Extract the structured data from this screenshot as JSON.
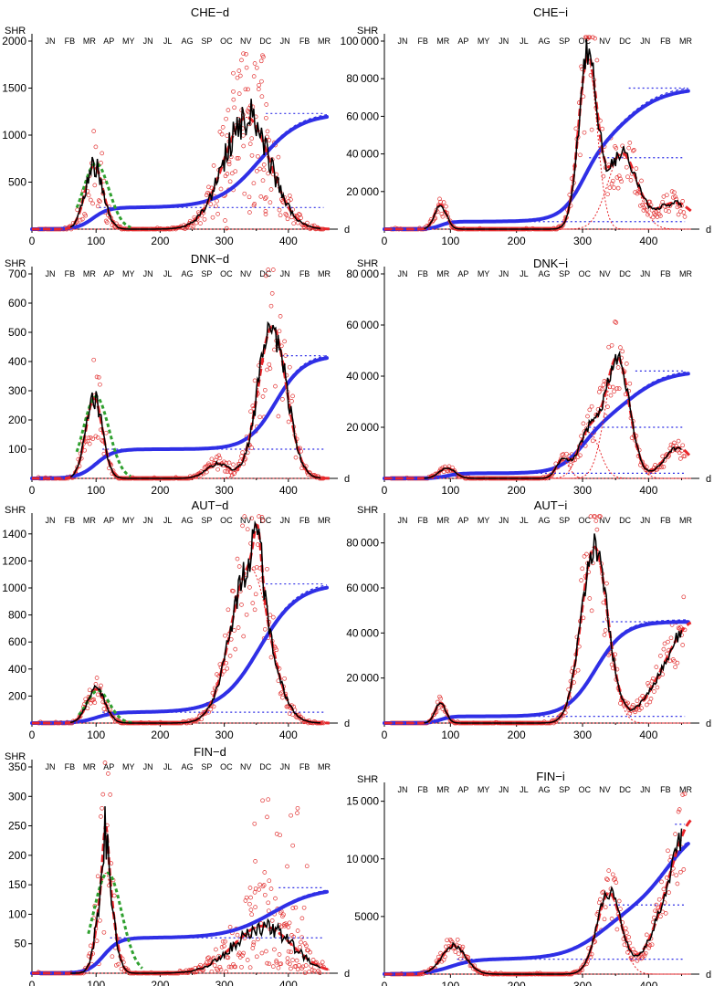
{
  "figure": {
    "months": [
      "JN",
      "FB",
      "MR",
      "AP",
      "MY",
      "JN",
      "JL",
      "AG",
      "SP",
      "OC",
      "NV",
      "DC",
      "JN",
      "FB",
      "MR"
    ],
    "ylabel": "SHR",
    "xlabel": "d",
    "colors": {
      "data": "#e23232",
      "avg": "#000000",
      "fitA": "#e8262b",
      "fitB": "#2f2fe6",
      "green": "#2fa02f"
    }
  },
  "chart_data": [
    {
      "id": "che_d",
      "type": "scatter",
      "title": "CHE−d",
      "xlim": [
        0,
        470
      ],
      "ylim": [
        0,
        2000
      ],
      "xticks": [
        0,
        100,
        200,
        300,
        400
      ],
      "yticks": [
        500,
        1000,
        1500,
        2000
      ],
      "ytick_labels": [
        "500",
        "1000",
        "1500",
        "2000"
      ],
      "waves": [
        {
          "c": 97,
          "w": 14,
          "h": 680
        },
        {
          "c": 335,
          "w": 36,
          "h": 1190
        }
      ],
      "blue_plateaus": [
        230,
        1230
      ],
      "blue_centers": [
        95,
        355
      ],
      "blue_widths": [
        12,
        32
      ],
      "green_wave": {
        "c": 100,
        "w": 20,
        "h": 700
      },
      "scatter_spread": 0.75,
      "scatter_extra": [
        [
          300,
          370,
          1900
        ]
      ],
      "bumps": []
    },
    {
      "id": "che_i",
      "type": "scatter",
      "title": "CHE−i",
      "xlim": [
        0,
        470
      ],
      "ylim": [
        0,
        100000
      ],
      "xticks": [
        0,
        100,
        200,
        300,
        400
      ],
      "yticks": [
        20000,
        40000,
        60000,
        80000,
        100000
      ],
      "ytick_labels": [
        "20 000",
        "40 000",
        "60 000",
        "80 000",
        "100 000"
      ],
      "waves": [
        {
          "c": 85,
          "w": 9,
          "h": 13000
        },
        {
          "c": 308,
          "w": 14,
          "h": 90000
        },
        {
          "c": 360,
          "w": 22,
          "h": 40000
        }
      ],
      "blue_plateaus": [
        4000,
        38000,
        75000
      ],
      "blue_centers": [
        85,
        300,
        360
      ],
      "blue_widths": [
        8,
        16,
        32
      ],
      "green_wave": null,
      "scatter_spread": 0.45,
      "scatter_extra": [],
      "bumps": [
        {
          "c": 440,
          "w": 28,
          "h": 14000
        }
      ]
    },
    {
      "id": "dnk_d",
      "type": "scatter",
      "title": "DNK−d",
      "xlim": [
        0,
        470
      ],
      "ylim": [
        0,
        700
      ],
      "xticks": [
        0,
        100,
        200,
        300,
        400
      ],
      "yticks": [
        100,
        200,
        300,
        400,
        500,
        600,
        700
      ],
      "ytick_labels": [
        "100",
        "200",
        "300",
        "400",
        "500",
        "600",
        "700"
      ],
      "waves": [
        {
          "c": 97,
          "w": 13,
          "h": 275
        },
        {
          "c": 375,
          "w": 22,
          "h": 520
        }
      ],
      "blue_plateaus": [
        100,
        420
      ],
      "blue_centers": [
        100,
        380
      ],
      "blue_widths": [
        14,
        22
      ],
      "green_wave": {
        "c": 100,
        "w": 20,
        "h": 280
      },
      "scatter_spread": 0.55,
      "scatter_extra": [],
      "bumps": [
        {
          "c": 290,
          "w": 18,
          "h": 50
        }
      ]
    },
    {
      "id": "dnk_i",
      "type": "scatter",
      "title": "DNK−i",
      "xlim": [
        0,
        470
      ],
      "ylim": [
        0,
        80000
      ],
      "xticks": [
        0,
        100,
        200,
        300,
        400
      ],
      "yticks": [
        20000,
        40000,
        60000,
        80000
      ],
      "ytick_labels": [
        "20 000",
        "40 000",
        "60 000",
        "80 000"
      ],
      "waves": [
        {
          "c": 95,
          "w": 12,
          "h": 4000
        },
        {
          "c": 270,
          "w": 10,
          "h": 7000
        },
        {
          "c": 310,
          "w": 16,
          "h": 18000
        },
        {
          "c": 353,
          "w": 18,
          "h": 47000
        }
      ],
      "blue_plateaus": [
        2000,
        20000,
        42000
      ],
      "blue_centers": [
        95,
        300,
        370
      ],
      "blue_widths": [
        10,
        18,
        30
      ],
      "green_wave": null,
      "scatter_spread": 0.35,
      "scatter_extra": [],
      "bumps": [
        {
          "c": 445,
          "w": 22,
          "h": 12000
        }
      ]
    },
    {
      "id": "aut_d",
      "type": "scatter",
      "title": "AUT−d",
      "xlim": [
        0,
        470
      ],
      "ylim": [
        0,
        1500
      ],
      "xticks": [
        0,
        100,
        200,
        300,
        400
      ],
      "yticks": [
        200,
        400,
        600,
        800,
        1000,
        1200,
        1400
      ],
      "ytick_labels": [
        "200",
        "400",
        "600",
        "800",
        "1000",
        "1200",
        "1400"
      ],
      "waves": [
        {
          "c": 100,
          "w": 14,
          "h": 250
        },
        {
          "c": 340,
          "w": 30,
          "h": 1150
        }
      ],
      "blue_plateaus": [
        80,
        1030
      ],
      "blue_centers": [
        100,
        355
      ],
      "blue_widths": [
        14,
        30
      ],
      "green_wave": {
        "c": 103,
        "w": 18,
        "h": 240
      },
      "scatter_spread": 0.45,
      "scatter_extra": [],
      "bumps": [
        {
          "c": 352,
          "w": 6,
          "h": 400
        }
      ]
    },
    {
      "id": "aut_i",
      "type": "scatter",
      "title": "AUT−i",
      "xlim": [
        0,
        470
      ],
      "ylim": [
        0,
        90000
      ],
      "xticks": [
        0,
        100,
        200,
        300,
        400
      ],
      "yticks": [
        20000,
        40000,
        60000,
        80000
      ],
      "ytick_labels": [
        "20 000",
        "40 000",
        "60 000",
        "80 000"
      ],
      "waves": [
        {
          "c": 85,
          "w": 8,
          "h": 9000
        },
        {
          "c": 318,
          "w": 20,
          "h": 78000
        }
      ],
      "blue_plateaus": [
        3000,
        45000
      ],
      "blue_centers": [
        85,
        320
      ],
      "blue_widths": [
        8,
        22
      ],
      "green_wave": null,
      "scatter_spread": 0.35,
      "scatter_extra": [],
      "bumps": [
        {
          "c": 470,
          "w": 45,
          "h": 45000
        }
      ]
    },
    {
      "id": "fin_d",
      "type": "scatter",
      "title": "FIN−d",
      "xlim": [
        0,
        470
      ],
      "ylim": [
        0,
        350
      ],
      "xticks": [
        0,
        100,
        200,
        300,
        400
      ],
      "yticks": [
        50,
        100,
        150,
        200,
        250,
        300,
        350
      ],
      "ytick_labels": [
        "50",
        "100",
        "150",
        "200",
        "250",
        "300",
        "350"
      ],
      "waves": [
        {
          "c": 115,
          "w": 12,
          "h": 170
        },
        {
          "c": 360,
          "w": 45,
          "h": 80
        }
      ],
      "blue_plateaus": [
        60,
        145
      ],
      "blue_centers": [
        112,
        375
      ],
      "blue_widths": [
        12,
        35
      ],
      "green_wave": {
        "c": 118,
        "w": 22,
        "h": 170
      },
      "scatter_spread": 0.9,
      "scatter_extra": [
        [
          340,
          430,
          300
        ]
      ],
      "bumps": [
        {
          "c": 115,
          "w": 4,
          "h": 80
        }
      ]
    },
    {
      "id": "fin_i",
      "type": "scatter",
      "title": "FIN−i",
      "xlim": [
        0,
        470
      ],
      "ylim": [
        0,
        16000
      ],
      "xticks": [
        0,
        100,
        200,
        300,
        400
      ],
      "yticks": [
        5000,
        10000,
        15000
      ],
      "ytick_labels": [
        "5000",
        "10 000",
        "15 000"
      ],
      "waves": [
        {
          "c": 105,
          "w": 18,
          "h": 2500
        },
        {
          "c": 340,
          "w": 18,
          "h": 7000
        }
      ],
      "blue_plateaus": [
        1300,
        6000,
        13000
      ],
      "blue_centers": [
        100,
        330,
        430
      ],
      "blue_widths": [
        18,
        30,
        25
      ],
      "green_wave": null,
      "scatter_spread": 0.35,
      "scatter_extra": [],
      "bumps": [
        {
          "c": 470,
          "w": 40,
          "h": 13500
        }
      ]
    }
  ]
}
